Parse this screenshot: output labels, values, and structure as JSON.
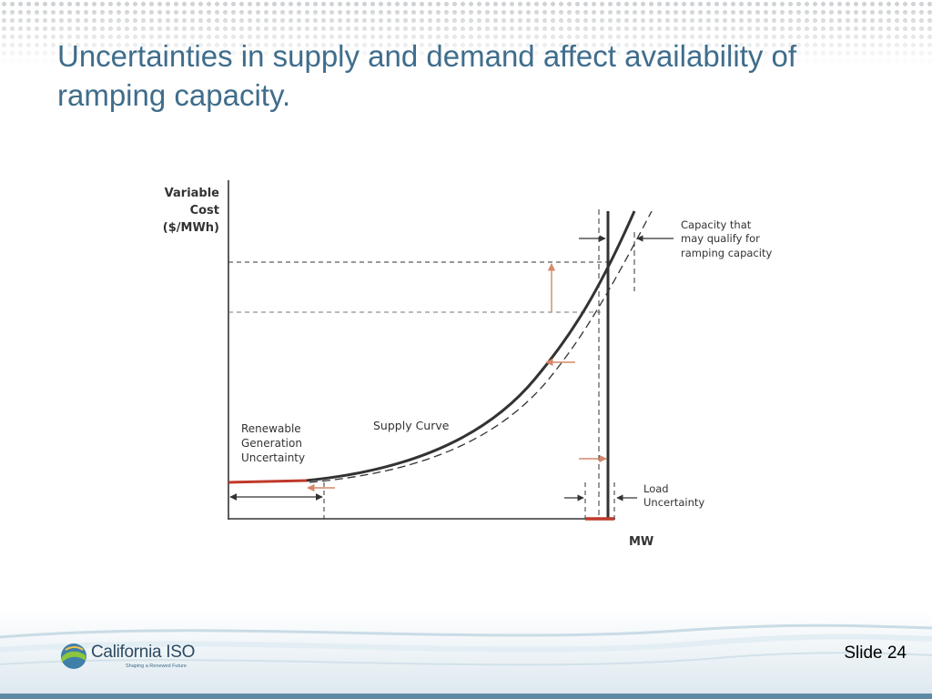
{
  "slide": {
    "title": "Uncertainties in supply and demand affect availability of ramping capacity.",
    "number_label": "Slide 24"
  },
  "diagram": {
    "y_axis_label_lines": [
      "Variable",
      "Cost",
      "($/MWh)"
    ],
    "x_axis_label": "MW",
    "supply_curve_label": "Supply Curve",
    "renewable_label_lines": [
      "Renewable",
      "Generation",
      "Uncertainty"
    ],
    "capacity_label_lines": [
      "Capacity that",
      "may qualify for",
      "ramping capacity"
    ],
    "load_label_lines": [
      "Load",
      "Uncertainty"
    ]
  },
  "logo": {
    "name": "California ISO",
    "tagline": "Shaping a Renewed Future"
  },
  "colors": {
    "title": "#3f6d8c",
    "curve": "#333333",
    "highlight_red": "#c0392b",
    "orange_arrow": "#d4896a"
  }
}
